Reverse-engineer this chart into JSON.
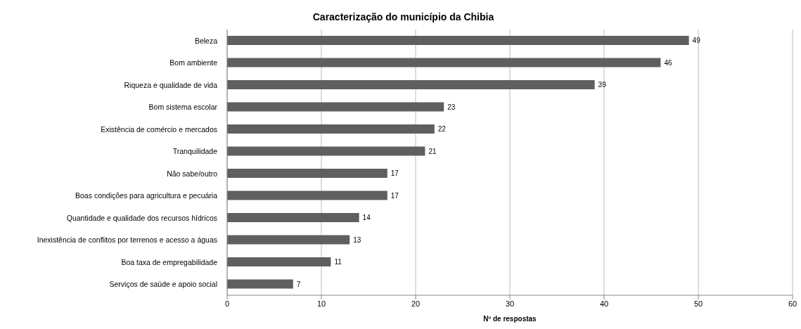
{
  "chart_data": {
    "type": "bar",
    "orientation": "horizontal",
    "title": "Caracterização do município da Chibia",
    "xlabel": "Nº de respostas",
    "categories": [
      "Beleza",
      "Bom ambiente",
      "Riqueza e qualidade de vida",
      "Bom sistema escolar",
      "Existência de comércio e mercados",
      "Tranquilidade",
      "Não sabe/outro",
      "Boas condições para agricultura e pecuária",
      "Quantidade e qualidade dos recursos hídricos",
      "Inexistência de conflitos por terrenos e acesso a águas",
      "Boa taxa de empregabilidade",
      "Serviços de saúde e apoio social"
    ],
    "values": [
      49,
      46,
      39,
      23,
      22,
      21,
      17,
      17,
      14,
      13,
      11,
      7
    ],
    "color": "#5f5f5f",
    "xlim": [
      0,
      60
    ],
    "xticks": [
      0,
      10,
      20,
      30,
      40,
      50,
      60
    ],
    "grid": "x",
    "data_labels": true
  }
}
